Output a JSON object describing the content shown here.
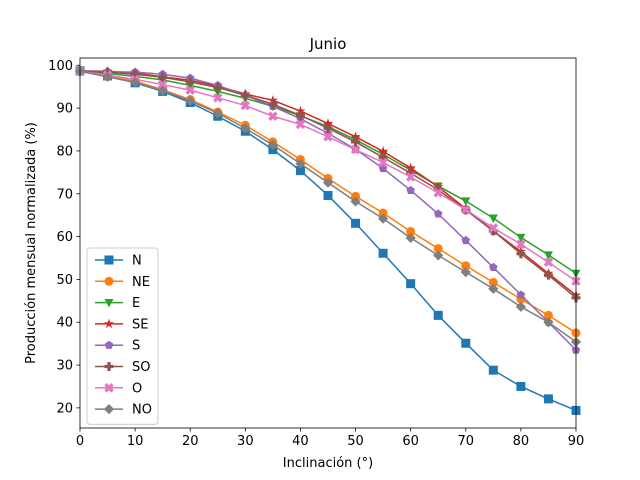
{
  "chart_data": {
    "type": "line",
    "title": "Junio",
    "xlabel": "Inclinación (°)",
    "ylabel": "Producción mensual normalizada (%)",
    "xlim": [
      0,
      90
    ],
    "ylim": [
      15.3,
      101.7
    ],
    "xticks": [
      0,
      10,
      20,
      30,
      40,
      50,
      60,
      70,
      80,
      90
    ],
    "yticks": [
      20,
      30,
      40,
      50,
      60,
      70,
      80,
      90,
      100
    ],
    "grid": false,
    "legend_position": "lower-left",
    "x": [
      0,
      5,
      10,
      15,
      20,
      25,
      30,
      35,
      40,
      45,
      50,
      55,
      60,
      65,
      70,
      75,
      80,
      85,
      90
    ],
    "series": [
      {
        "name": "N",
        "color": "#1f77b4",
        "marker": "square",
        "values": [
          98.7,
          97.5,
          95.9,
          93.9,
          91.3,
          88.1,
          84.6,
          80.3,
          75.4,
          69.6,
          63.1,
          56.1,
          49.0,
          41.6,
          35.1,
          28.8,
          25.0,
          22.1,
          19.4
        ]
      },
      {
        "name": "NE",
        "color": "#ff7f0e",
        "marker": "circle",
        "values": [
          98.6,
          97.5,
          96.3,
          94.3,
          92.0,
          89.1,
          86.0,
          82.1,
          78.0,
          73.6,
          69.4,
          65.5,
          61.2,
          57.2,
          53.2,
          49.3,
          45.4,
          41.6,
          37.5
        ]
      },
      {
        "name": "E",
        "color": "#2ca02c",
        "marker": "triangle-down",
        "values": [
          98.6,
          98.1,
          97.4,
          96.6,
          95.3,
          93.9,
          92.3,
          90.4,
          88.2,
          85.7,
          82.6,
          79.2,
          75.5,
          71.8,
          68.3,
          64.3,
          59.8,
          55.7,
          51.4
        ]
      },
      {
        "name": "SE",
        "color": "#d62728",
        "marker": "star",
        "values": [
          98.7,
          98.6,
          98.2,
          97.3,
          96.5,
          95.1,
          93.3,
          91.8,
          89.3,
          86.4,
          83.3,
          79.9,
          76.0,
          71.6,
          66.5,
          61.3,
          56.5,
          51.4,
          46.3
        ]
      },
      {
        "name": "S",
        "color": "#9467bd",
        "marker": "pentagon",
        "values": [
          98.7,
          98.5,
          98.4,
          97.9,
          97.0,
          95.3,
          93.0,
          90.4,
          87.5,
          84.1,
          80.4,
          75.9,
          70.8,
          65.3,
          59.1,
          52.8,
          46.4,
          40.0,
          33.5
        ]
      },
      {
        "name": "SO",
        "color": "#8c564b",
        "marker": "plus",
        "values": [
          98.6,
          98.4,
          97.9,
          97.2,
          96.1,
          94.8,
          93.0,
          90.9,
          88.3,
          85.3,
          82.1,
          78.5,
          74.8,
          70.9,
          66.2,
          61.3,
          56.0,
          51.0,
          45.7
        ]
      },
      {
        "name": "O",
        "color": "#e377c2",
        "marker": "x",
        "values": [
          98.6,
          97.7,
          96.7,
          95.5,
          94.2,
          92.4,
          90.6,
          88.1,
          86.2,
          83.3,
          80.3,
          77.3,
          73.9,
          70.2,
          66.3,
          62.0,
          58.2,
          54.0,
          49.6
        ]
      },
      {
        "name": "NO",
        "color": "#7f7f7f",
        "marker": "diamond",
        "values": [
          98.6,
          97.3,
          96.0,
          94.1,
          91.7,
          88.8,
          85.3,
          81.4,
          77.0,
          72.6,
          68.2,
          64.2,
          59.7,
          55.6,
          51.7,
          47.8,
          43.6,
          40.0,
          35.4
        ]
      }
    ]
  }
}
